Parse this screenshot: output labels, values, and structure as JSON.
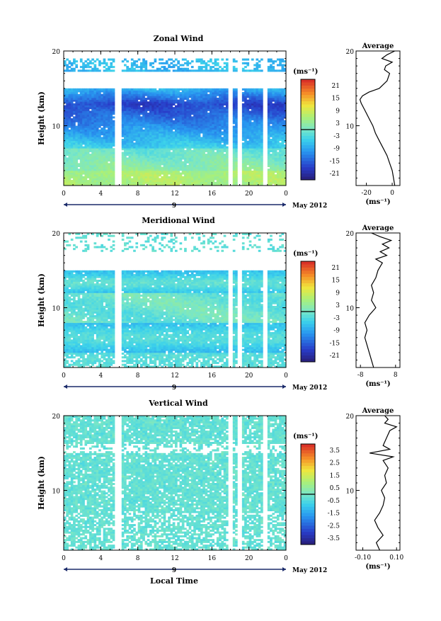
{
  "figure": {
    "xlabel": "Local Time",
    "date_label": "May 2012",
    "day_label": "9",
    "unit_label": "(ms⁻¹)",
    "avg_title": "Average",
    "avg_unit": "(ms⁻¹)",
    "ylabel": "Height (km)"
  },
  "chart_data": [
    {
      "type": "heatmap",
      "title": "Zonal Wind",
      "xlabel": "Local Time",
      "ylabel": "Height (km)",
      "xticks": [
        "0",
        "4",
        "8",
        "12",
        "16",
        "20",
        "0"
      ],
      "xticks_values": [
        0,
        4,
        8,
        12,
        16,
        20,
        24
      ],
      "xlim": [
        0,
        24
      ],
      "yticks": [
        "10",
        "20"
      ],
      "ylim": [
        2,
        20
      ],
      "colorbar": {
        "unit": "(ms⁻¹)",
        "ticks": [
          "21",
          "15",
          "9",
          "3",
          "-3",
          "-9",
          "-15",
          "-21"
        ],
        "range": [
          -24,
          24
        ]
      },
      "gaps": [
        [
          5.4,
          6.2
        ],
        [
          17.7,
          18.2
        ],
        [
          18.8,
          19.3
        ],
        [
          21.5,
          22.0
        ]
      ],
      "profile_pattern": "zonal",
      "average": {
        "title": "Average",
        "unit": "(ms⁻¹)",
        "xticks": [
          "-20",
          "0"
        ],
        "xlim": [
          -28,
          6
        ],
        "heights": [
          2,
          3,
          4,
          5,
          6,
          7,
          8,
          9,
          10,
          11,
          12,
          13,
          13.5,
          14,
          14.5,
          15,
          16,
          17,
          17.5,
          18,
          18.5,
          19,
          19.5,
          20
        ],
        "values": [
          2,
          1,
          0,
          -2,
          -4,
          -7,
          -10,
          -13,
          -15,
          -18,
          -21,
          -24,
          -25,
          -23,
          -18,
          -10,
          -4,
          -2,
          -6,
          -5,
          0,
          -8,
          -4,
          2
        ]
      }
    },
    {
      "type": "heatmap",
      "title": "Meridional Wind",
      "xlabel": "Local Time",
      "ylabel": "Height (km)",
      "xticks": [
        "0",
        "4",
        "8",
        "12",
        "16",
        "20",
        "0"
      ],
      "xticks_values": [
        0,
        4,
        8,
        12,
        16,
        20,
        24
      ],
      "xlim": [
        0,
        24
      ],
      "yticks": [
        "10",
        "20"
      ],
      "ylim": [
        2,
        20
      ],
      "colorbar": {
        "unit": "(ms⁻¹)",
        "ticks": [
          "21",
          "15",
          "9",
          "3",
          "-3",
          "-9",
          "-15",
          "-21"
        ],
        "range": [
          -24,
          24
        ]
      },
      "gaps": [
        [
          5.4,
          6.2
        ],
        [
          17.7,
          18.2
        ],
        [
          18.8,
          19.2
        ],
        [
          21.5,
          22.0
        ]
      ],
      "profile_pattern": "meridional",
      "average": {
        "title": "Average",
        "unit": "(ms⁻¹)",
        "xticks": [
          "-8",
          "8"
        ],
        "xlim": [
          -10,
          10
        ],
        "heights": [
          2,
          3,
          4,
          5,
          6,
          7,
          8,
          9,
          10,
          11,
          12,
          13,
          14,
          15,
          16,
          16.5,
          17,
          17.5,
          18,
          18.5,
          19,
          19.5,
          20
        ],
        "values": [
          -2,
          -3,
          -4,
          -5,
          -6,
          -5,
          -6,
          -4,
          -1,
          -3,
          -2,
          -3,
          -1,
          0,
          2,
          -1,
          4,
          1,
          5,
          2,
          6,
          1,
          -3
        ]
      }
    },
    {
      "type": "heatmap",
      "title": "Vertical Wind",
      "xlabel": "Local Time",
      "ylabel": "Height (km)",
      "xticks": [
        "0",
        "4",
        "8",
        "12",
        "16",
        "20",
        "0"
      ],
      "xticks_values": [
        0,
        4,
        8,
        12,
        16,
        20,
        24
      ],
      "xlim": [
        0,
        24
      ],
      "yticks": [
        "10",
        "20"
      ],
      "ylim": [
        2,
        20
      ],
      "colorbar": {
        "unit": "(ms⁻¹)",
        "ticks": [
          "3.5",
          "2.5",
          "1.5",
          "0.5",
          "-0.5",
          "-1.5",
          "-2.5",
          "-3.5"
        ],
        "range": [
          -4,
          4
        ]
      },
      "gaps": [
        [
          5.4,
          6.2
        ],
        [
          17.7,
          18.2
        ],
        [
          18.8,
          19.2
        ],
        [
          21.5,
          22.0
        ]
      ],
      "profile_pattern": "vertical",
      "average": {
        "title": "Average",
        "unit": "(ms⁻¹)",
        "xticks": [
          "-0.10",
          "0.10"
        ],
        "xlim": [
          -0.14,
          0.12
        ],
        "heights": [
          2,
          3,
          4,
          5,
          6,
          7,
          8,
          9,
          10,
          11,
          12,
          13,
          14,
          14.5,
          15,
          15.5,
          16,
          17,
          18,
          18.5,
          19,
          19.5,
          20
        ],
        "values": [
          0.0,
          -0.02,
          0.02,
          -0.01,
          -0.03,
          0.0,
          0.02,
          0.03,
          0.01,
          0.04,
          0.03,
          0.05,
          0.02,
          0.08,
          -0.06,
          0.06,
          0.02,
          0.04,
          0.06,
          0.1,
          0.03,
          0.05,
          0.03
        ]
      }
    }
  ]
}
